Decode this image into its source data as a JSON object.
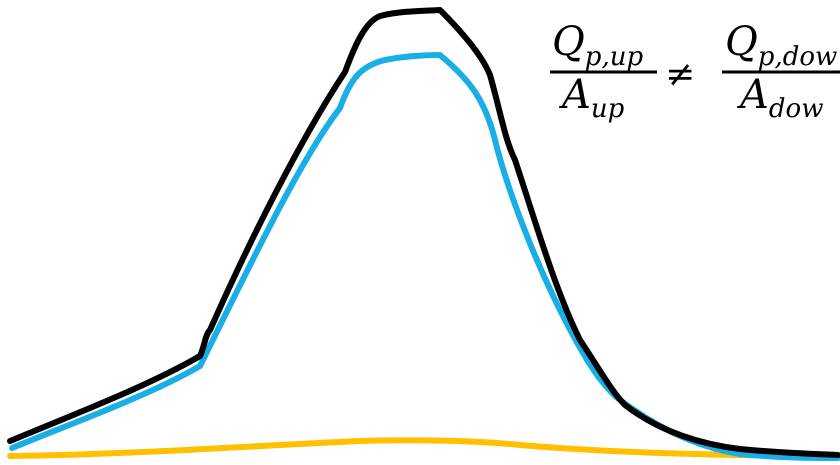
{
  "equation": {
    "left_num_base": "Q",
    "left_num_sub": "p,up",
    "left_den_base": "A",
    "left_den_sub": "up",
    "operator": "≠",
    "right_num_base": "Q",
    "right_num_sub": "p,dow",
    "right_den_base": "A",
    "right_den_sub": "dow"
  },
  "curves": [
    {
      "id": "total",
      "color": "#000000"
    },
    {
      "id": "upstream",
      "color": "#1aaee6"
    },
    {
      "id": "baseflow",
      "color": "#ffc000"
    }
  ]
}
